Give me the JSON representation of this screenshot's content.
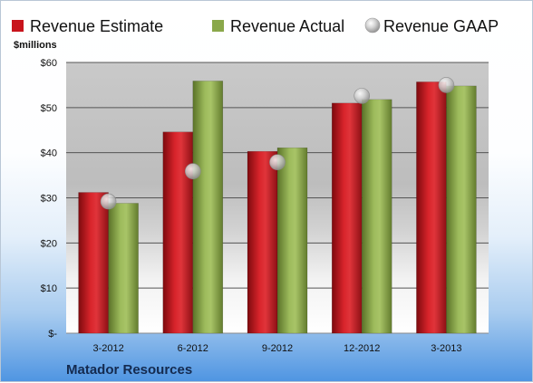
{
  "chart_data": {
    "type": "bar",
    "unit_label": "$millions",
    "company": "Matador Resources",
    "categories": [
      "3-2012",
      "6-2012",
      "9-2012",
      "12-2012",
      "3-2013"
    ],
    "series": [
      {
        "name": "Revenue Estimate",
        "type": "bar",
        "color": "#c8141c",
        "values": [
          31.2,
          44.6,
          40.3,
          51.0,
          55.7
        ]
      },
      {
        "name": "Revenue Actual",
        "type": "bar",
        "color": "#8aa84a",
        "values": [
          28.8,
          55.9,
          41.1,
          51.8,
          54.8
        ]
      },
      {
        "name": "Revenue GAAP",
        "type": "marker",
        "color": "#b8b8b8",
        "values": [
          29.2,
          35.9,
          37.9,
          52.6,
          55.0
        ]
      }
    ],
    "ylim": [
      0,
      60
    ],
    "yticks": [
      0,
      10,
      20,
      30,
      40,
      50,
      60
    ],
    "ytick_labels": [
      "$-",
      "$10",
      "$20",
      "$30",
      "$40",
      "$50",
      "$60"
    ],
    "grid": true,
    "legend_position": "top"
  }
}
